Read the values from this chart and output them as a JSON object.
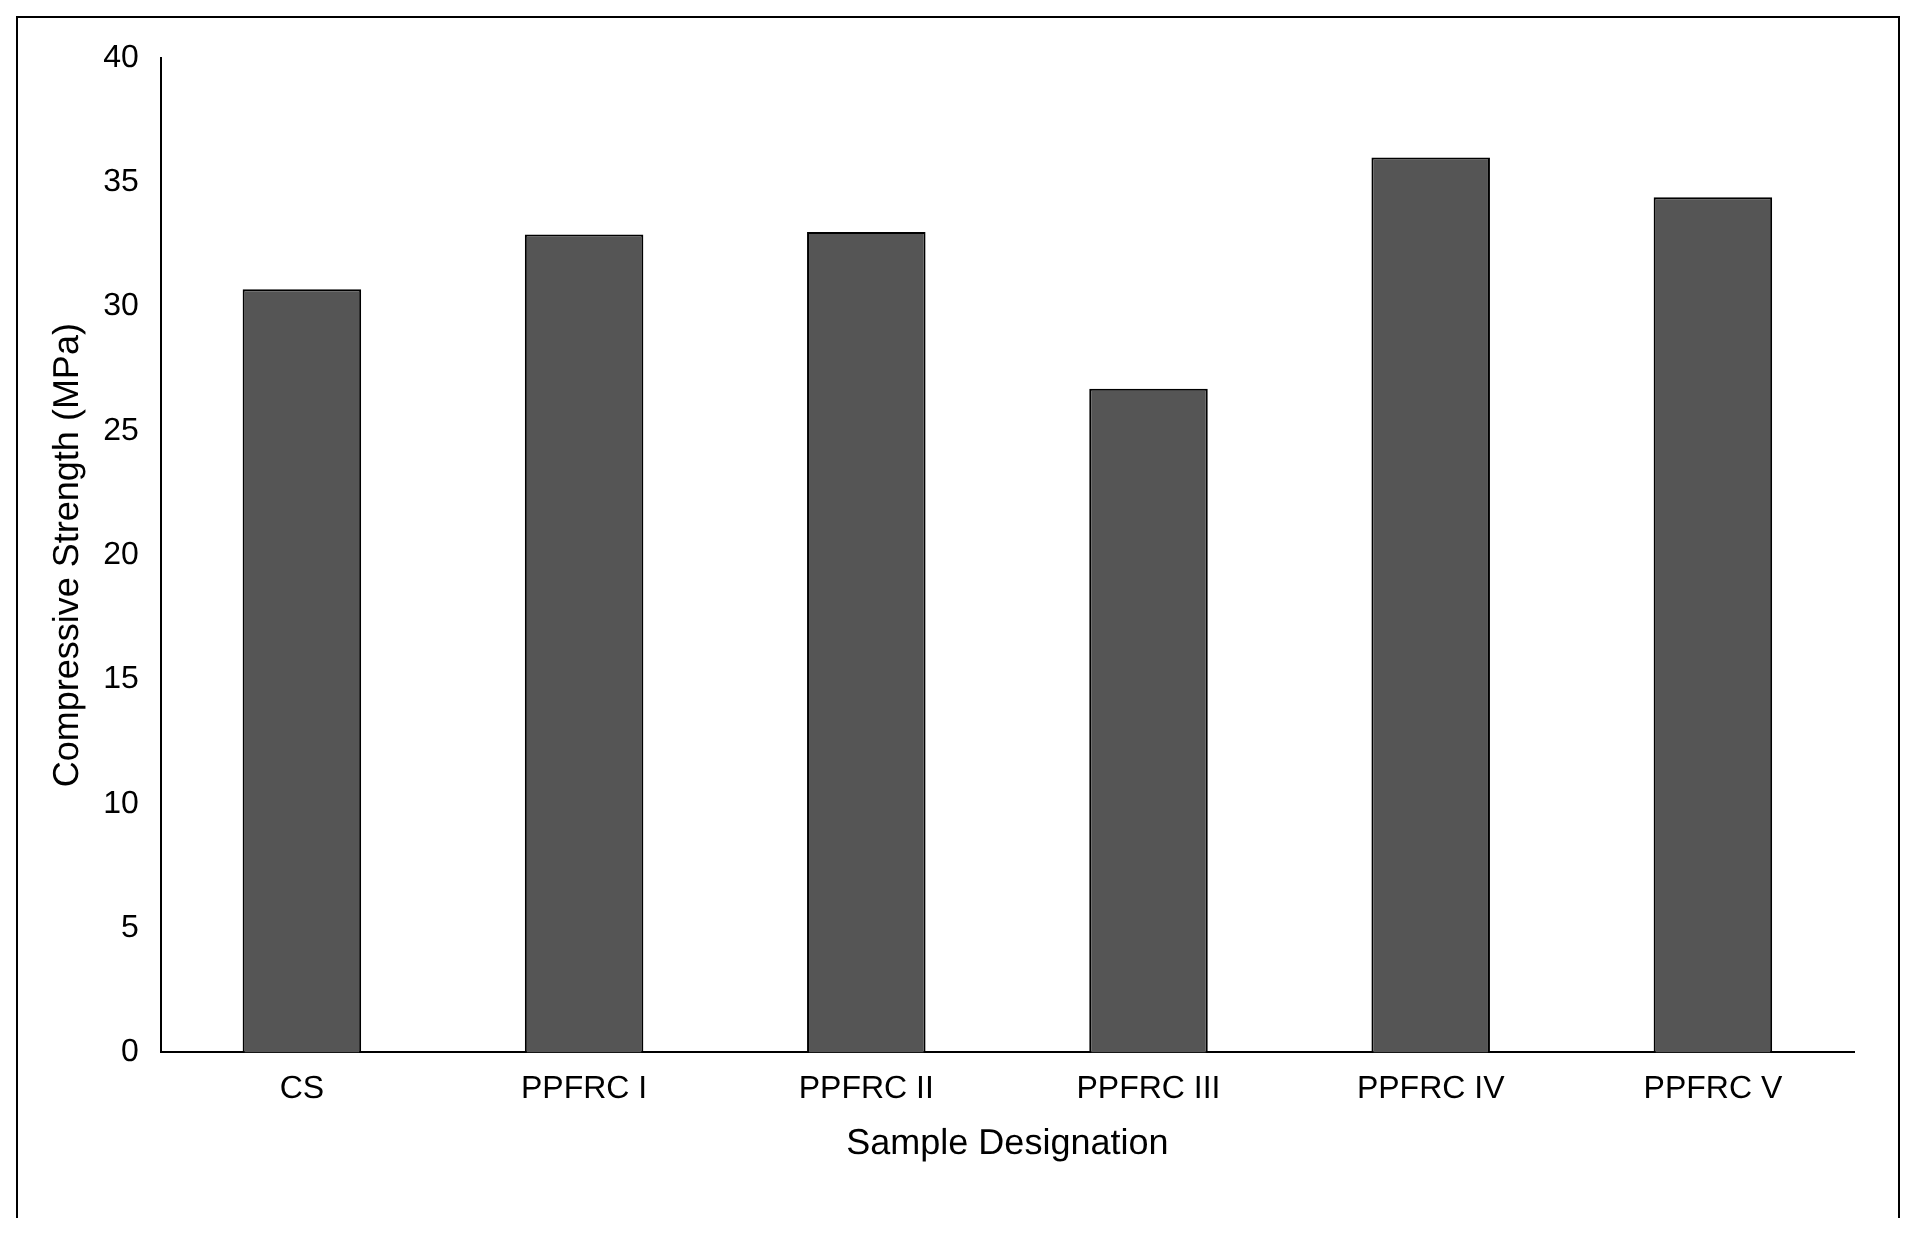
{
  "chart_data": {
    "type": "bar",
    "xlabel": "Sample Designation",
    "ylabel": "Compressive Strength (MPa)",
    "categories": [
      "CS",
      "PPFRC I",
      "PPFRC II",
      "PPFRC III",
      "PPFRC IV",
      "PPFRC V"
    ],
    "values": [
      30.7,
      32.9,
      33.0,
      26.7,
      36.0,
      34.4
    ],
    "color": "#555555",
    "ylim": [
      0,
      40
    ],
    "yticks": [
      0,
      5,
      10,
      15,
      20,
      25,
      30,
      35,
      40
    ],
    "grid": false,
    "legend": false
  }
}
